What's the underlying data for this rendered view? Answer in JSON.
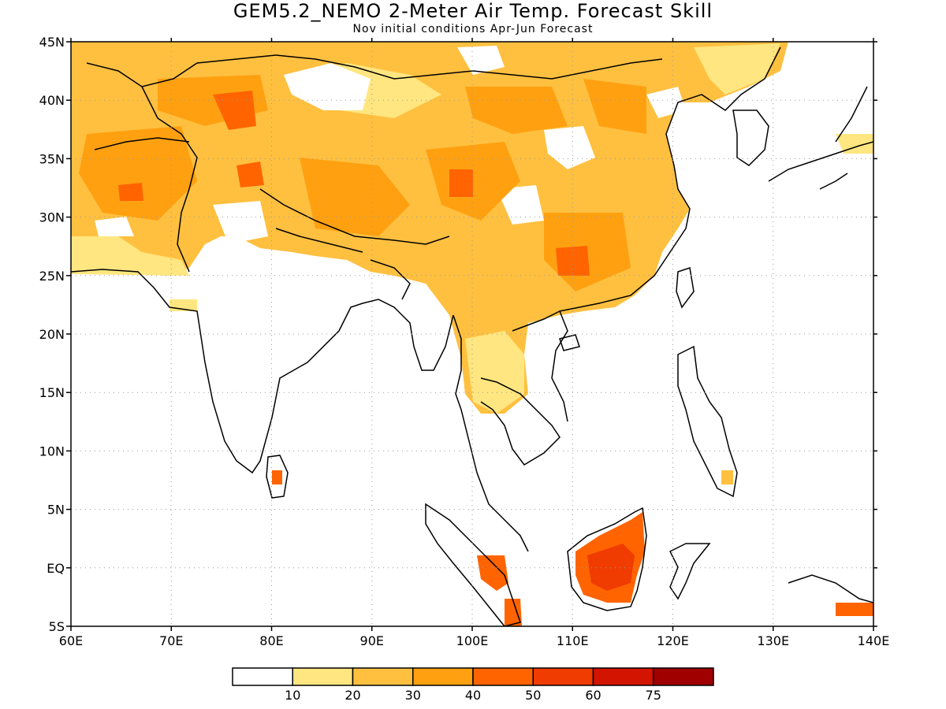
{
  "title": "GEM5.2_NEMO 2-Meter Air Temp. Forecast Skill",
  "subtitle": "Nov initial conditions  Apr-Jun Forecast",
  "map": {
    "lon_range": [
      60,
      140
    ],
    "lat_range": [
      -5,
      45
    ],
    "lon_ticks": [
      {
        "value": 60,
        "label": "60E"
      },
      {
        "value": 70,
        "label": "70E"
      },
      {
        "value": 80,
        "label": "80E"
      },
      {
        "value": 90,
        "label": "90E"
      },
      {
        "value": 100,
        "label": "100E"
      },
      {
        "value": 110,
        "label": "110E"
      },
      {
        "value": 120,
        "label": "120E"
      },
      {
        "value": 130,
        "label": "130E"
      },
      {
        "value": 140,
        "label": "140E"
      }
    ],
    "lat_ticks": [
      {
        "value": 45,
        "label": "45N"
      },
      {
        "value": 40,
        "label": "40N"
      },
      {
        "value": 35,
        "label": "35N"
      },
      {
        "value": 30,
        "label": "30N"
      },
      {
        "value": 25,
        "label": "25N"
      },
      {
        "value": 20,
        "label": "20N"
      },
      {
        "value": 15,
        "label": "15N"
      },
      {
        "value": 10,
        "label": "10N"
      },
      {
        "value": 5,
        "label": "5N"
      },
      {
        "value": 0,
        "label": "EQ"
      },
      {
        "value": -5,
        "label": "5S"
      }
    ],
    "grid": "dotted",
    "coastline_color": "#000000"
  },
  "legend": {
    "colors": [
      "#ffffff",
      "#ffe680",
      "#ffc040",
      "#ffa010",
      "#ff6400",
      "#f03c00",
      "#d21400",
      "#a00000"
    ],
    "labels": [
      "10",
      "20",
      "30",
      "40",
      "50",
      "60",
      "75"
    ]
  }
}
